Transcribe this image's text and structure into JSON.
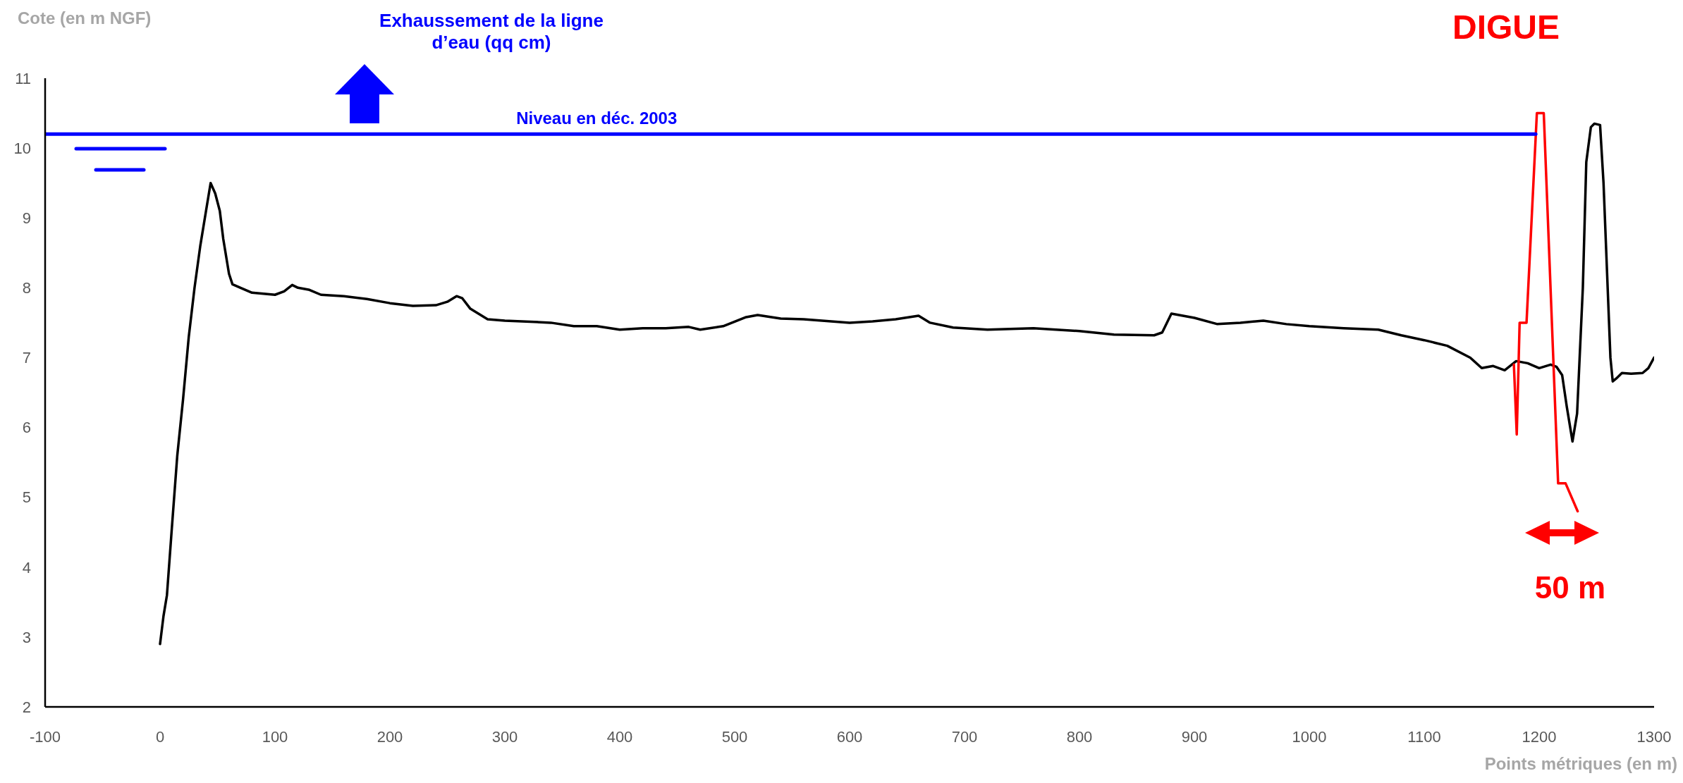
{
  "chart_data": {
    "type": "line",
    "xlabel": "Points métriques (en m)",
    "ylabel": "Cote (en m NGF)",
    "annotations": [
      "Exhaussement de la ligne d’eau (qq cm)",
      "DIGUE",
      "50 m"
    ],
    "xlim": [
      -100,
      1300
    ],
    "xticks": [
      -100,
      0,
      100,
      200,
      300,
      400,
      500,
      600,
      700,
      800,
      900,
      1000,
      1100,
      1200,
      1300
    ],
    "ylim": [
      2,
      11
    ],
    "yticks": [
      2,
      3,
      4,
      5,
      6,
      7,
      8,
      9,
      10,
      11
    ],
    "marker": "none",
    "line_style": "solid",
    "series": [
      {
        "color": "#000000",
        "x": [
          0,
          3,
          6,
          10,
          15,
          20,
          25,
          30,
          35,
          40,
          44,
          48,
          52,
          55,
          60,
          63,
          70,
          80,
          100,
          108,
          115,
          120,
          130,
          140,
          160,
          180,
          200,
          220,
          240,
          250,
          258,
          263,
          270,
          285,
          300,
          340,
          360,
          380,
          400,
          420,
          440,
          460,
          470,
          490,
          510,
          520,
          540,
          560,
          600,
          620,
          640,
          660,
          670,
          690,
          720,
          760,
          800,
          830,
          865,
          872,
          880,
          900,
          920,
          940,
          960,
          980,
          1000,
          1030,
          1060,
          1080,
          1100,
          1120,
          1140,
          1150,
          1160,
          1170,
          1180,
          1190,
          1200,
          1210,
          1215,
          1220,
          1224,
          1229,
          1233,
          1238,
          1241,
          1245,
          1248,
          1253,
          1256,
          1262,
          1264,
          1267,
          1272,
          1280,
          1290,
          1295,
          1300
        ],
        "values": [
          2.9,
          3.3,
          3.6,
          4.5,
          5.6,
          6.4,
          7.3,
          8.0,
          8.6,
          9.1,
          9.5,
          9.35,
          9.1,
          8.7,
          8.2,
          8.05,
          8.0,
          7.93,
          7.9,
          7.95,
          8.04,
          8.0,
          7.97,
          7.9,
          7.88,
          7.84,
          7.78,
          7.74,
          7.75,
          7.8,
          7.88,
          7.85,
          7.7,
          7.55,
          7.53,
          7.5,
          7.45,
          7.45,
          7.4,
          7.42,
          7.42,
          7.44,
          7.4,
          7.45,
          7.58,
          7.61,
          7.56,
          7.55,
          7.5,
          7.52,
          7.55,
          7.6,
          7.5,
          7.43,
          7.4,
          7.42,
          7.38,
          7.33,
          7.32,
          7.36,
          7.63,
          7.57,
          7.48,
          7.5,
          7.53,
          7.48,
          7.45,
          7.42,
          7.4,
          7.32,
          7.25,
          7.17,
          7.0,
          6.85,
          6.88,
          6.82,
          6.95,
          6.92,
          6.85,
          6.9,
          6.87,
          6.75,
          6.3,
          5.8,
          6.2,
          8.0,
          9.8,
          10.3,
          10.35,
          10.33,
          9.5,
          7.0,
          6.66,
          6.7,
          6.78,
          6.77,
          6.78,
          6.85,
          7.0
        ]
      },
      {
        "color": "#ff0000",
        "x": [
          1178,
          1180.5,
          1183,
          1189,
          1198,
          1204,
          1216.5,
          1223,
          1233.5
        ],
        "values": [
          6.9,
          5.9,
          7.5,
          7.5,
          10.5,
          10.5,
          5.2,
          5.2,
          4.8
        ]
      },
      {
        "name": "Niveau en déc. 2003",
        "color": "#0000ff",
        "x": [
          -100,
          1197
        ],
        "values": [
          10.2,
          10.2
        ]
      }
    ]
  }
}
